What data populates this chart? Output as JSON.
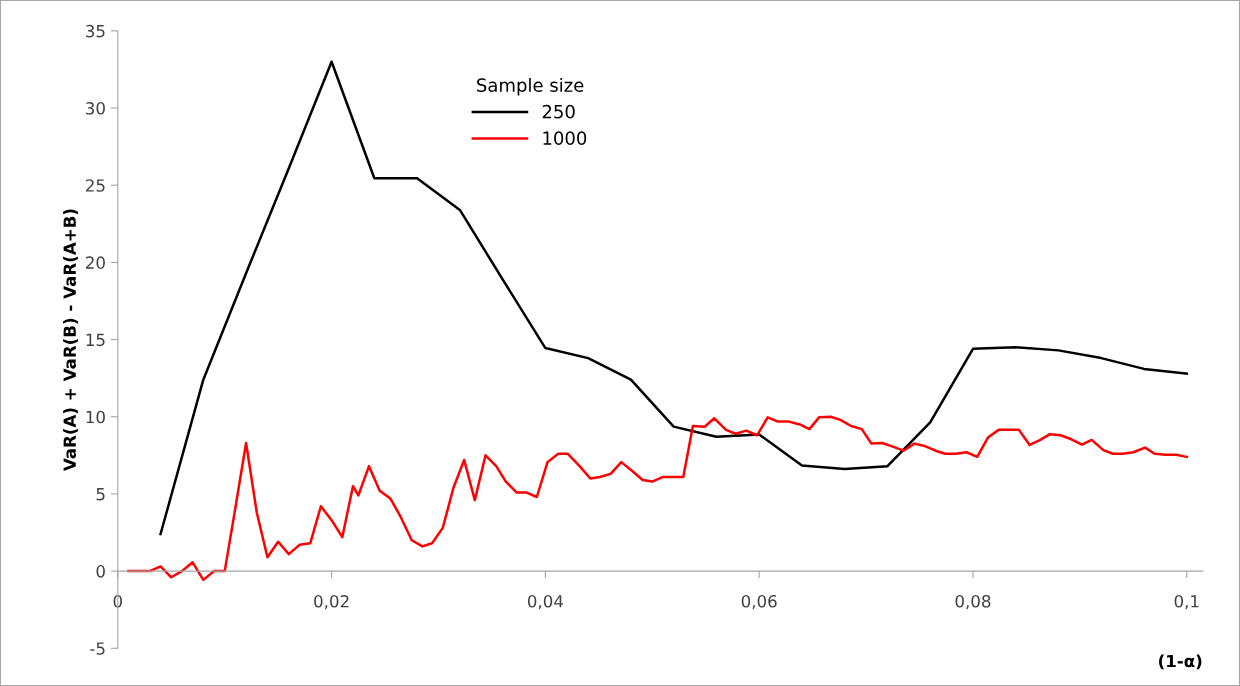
{
  "chart_data": {
    "type": "line",
    "xlabel": "(1-α)",
    "ylabel": "VaR(A) + VaR(B) - VaR(A+B)",
    "legend_title": "Sample size",
    "legend": "top",
    "grid": false,
    "marker": "none",
    "line_style": "solid",
    "xlim": [
      0,
      0.1015
    ],
    "ylim": [
      -5,
      35
    ],
    "xticks": [
      0,
      {
        "value": 0.02,
        "label": "0,02"
      },
      {
        "value": 0.04,
        "label": "0,04"
      },
      {
        "value": 0.06,
        "label": "0,06"
      },
      {
        "value": 0.08,
        "label": "0,08"
      },
      {
        "value": 0.1,
        "label": "0,1"
      }
    ],
    "yticks": [
      -5,
      0,
      5,
      10,
      15,
      20,
      25,
      30,
      35
    ],
    "series": [
      {
        "name": "250",
        "color": "#000000",
        "x": [
          0.004,
          0.008,
          0.012,
          0.016,
          0.02,
          0.024,
          0.028,
          0.032,
          0.036,
          0.04,
          0.044,
          0.048,
          0.052,
          0.056,
          0.06,
          0.064,
          0.068,
          0.072,
          0.076,
          0.08,
          0.084,
          0.088,
          0.092,
          0.096,
          0.1
        ],
        "values": [
          2.4,
          12.4,
          19.3,
          26.1,
          33.0,
          25.45,
          25.45,
          23.4,
          18.9,
          14.45,
          13.8,
          12.4,
          9.36,
          8.7,
          8.85,
          6.84,
          6.62,
          6.8,
          9.63,
          14.4,
          14.5,
          14.3,
          13.8,
          13.1,
          12.8
        ]
      },
      {
        "name": "1000",
        "color": "#ff0000",
        "x": [
          0.001,
          0.002,
          0.003,
          0.004,
          0.005,
          0.006,
          0.007,
          0.008,
          0.009,
          0.01,
          0.011,
          0.012,
          0.013,
          0.014,
          0.015,
          0.016,
          0.017,
          0.018,
          0.019,
          0.02,
          0.021,
          0.022,
          0.0225,
          0.0235,
          0.0245,
          0.0255,
          0.0264,
          0.0275,
          0.0285,
          0.0294,
          0.0304,
          0.0314,
          0.0324,
          0.0334,
          0.0344,
          0.0354,
          0.0363,
          0.0373,
          0.0382,
          0.0392,
          0.0402,
          0.0412,
          0.0421,
          0.0432,
          0.0442,
          0.0451,
          0.0461,
          0.0471,
          0.0481,
          0.0491,
          0.05,
          0.051,
          0.052,
          0.0529,
          0.0538,
          0.0549,
          0.0558,
          0.0569,
          0.0578,
          0.0588,
          0.0598,
          0.0608,
          0.0617,
          0.0627,
          0.0638,
          0.0647,
          0.0656,
          0.0667,
          0.0676,
          0.0686,
          0.0696,
          0.0705,
          0.0715,
          0.0725,
          0.0735,
          0.0745,
          0.0755,
          0.0765,
          0.0774,
          0.0784,
          0.0794,
          0.0804,
          0.0814,
          0.0824,
          0.0834,
          0.0843,
          0.0853,
          0.0863,
          0.0872,
          0.0882,
          0.0892,
          0.0902,
          0.0911,
          0.0922,
          0.0931,
          0.094,
          0.095,
          0.0961,
          0.097,
          0.098,
          0.099,
          0.1
        ],
        "values": [
          0,
          0,
          0,
          0.3,
          -0.4,
          0,
          0.57,
          -0.57,
          0,
          0,
          4.1,
          8.3,
          3.8,
          0.9,
          1.9,
          1.1,
          1.7,
          1.8,
          4.2,
          3.3,
          2.2,
          5.5,
          4.9,
          6.8,
          5.2,
          4.7,
          3.6,
          2.0,
          1.6,
          1.8,
          2.8,
          5.4,
          7.2,
          4.6,
          7.5,
          6.8,
          5.8,
          5.1,
          5.1,
          4.8,
          7.06,
          7.6,
          7.6,
          6.8,
          6.0,
          6.1,
          6.3,
          7.06,
          6.5,
          5.9,
          5.8,
          6.1,
          6.1,
          6.1,
          9.4,
          9.35,
          9.9,
          9.15,
          8.9,
          9.1,
          8.8,
          9.96,
          9.7,
          9.7,
          9.5,
          9.2,
          9.96,
          10.0,
          9.8,
          9.4,
          9.2,
          8.26,
          8.3,
          8.06,
          7.8,
          8.26,
          8.1,
          7.8,
          7.6,
          7.6,
          7.7,
          7.4,
          8.65,
          9.15,
          9.15,
          9.15,
          8.17,
          8.5,
          8.87,
          8.8,
          8.54,
          8.2,
          8.5,
          7.84,
          7.6,
          7.6,
          7.7,
          8.0,
          7.6,
          7.54,
          7.54,
          7.4
        ]
      }
    ]
  }
}
